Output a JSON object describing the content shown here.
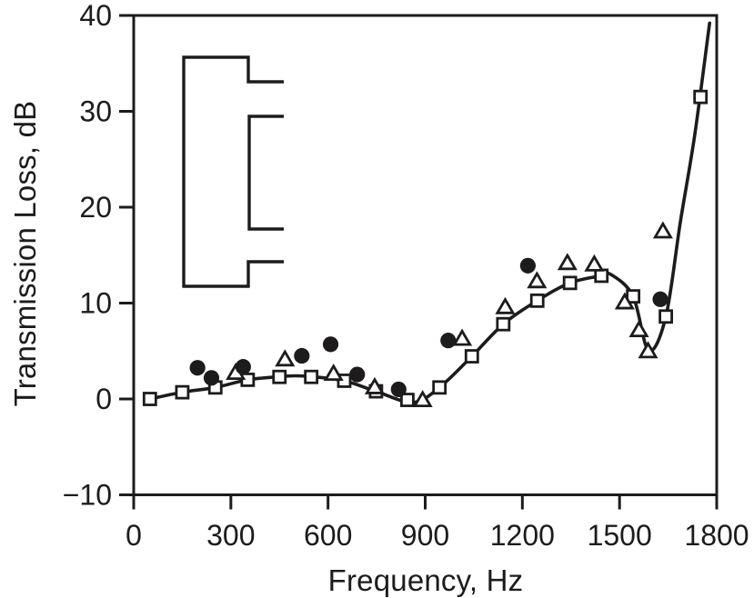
{
  "figure": {
    "background": "#ffffff",
    "ink_color": "#1d1b1b"
  },
  "chart_data": {
    "type": "line+scatter",
    "title": "",
    "xlabel": "Frequency, Hz",
    "ylabel": "Transmission Loss, dB",
    "xlim": [
      0,
      1800
    ],
    "ylim": [
      -10,
      40
    ],
    "xticks": [
      0,
      300,
      600,
      900,
      1200,
      1500,
      1800
    ],
    "xtick_labels": [
      "0",
      "300",
      "600",
      "900",
      "1200",
      "1500",
      "1800"
    ],
    "yticks": [
      40,
      30,
      20,
      10,
      0,
      -10
    ],
    "ytick_labels": [
      "40",
      "30",
      "20",
      "10",
      "0",
      "−10"
    ],
    "grid": false,
    "legend_position": "none",
    "series": [
      {
        "name": "prediction-line-open-squares",
        "marker": "open-square",
        "has_line": true,
        "points": [
          [
            50,
            0.0
          ],
          [
            150,
            0.7
          ],
          [
            252,
            1.2
          ],
          [
            352,
            2.0
          ],
          [
            450,
            2.3
          ],
          [
            548,
            2.3
          ],
          [
            650,
            1.9
          ],
          [
            748,
            0.8
          ],
          [
            845,
            -0.1
          ],
          [
            944,
            1.2
          ],
          [
            1044,
            4.45
          ],
          [
            1141,
            7.8
          ],
          [
            1246,
            10.25
          ],
          [
            1347,
            12.1
          ],
          [
            1444,
            12.85
          ],
          [
            1542,
            10.7
          ],
          [
            1643,
            8.6
          ],
          [
            1750,
            31.5
          ]
        ]
      },
      {
        "name": "measured-filled-circles",
        "marker": "filled-circle",
        "has_line": false,
        "points": [
          [
            197,
            3.25
          ],
          [
            240,
            2.2
          ],
          [
            338,
            3.35
          ],
          [
            519,
            4.5
          ],
          [
            608,
            5.7
          ],
          [
            690,
            2.55
          ],
          [
            818,
            1.0
          ],
          [
            971,
            6.1
          ],
          [
            1217,
            13.9
          ],
          [
            1626,
            10.4
          ]
        ]
      },
      {
        "name": "measured-open-triangles",
        "marker": "open-triangle",
        "has_line": false,
        "points": [
          [
            315,
            2.75
          ],
          [
            467,
            4.15
          ],
          [
            617,
            2.65
          ],
          [
            744,
            1.25
          ],
          [
            892,
            -0.1
          ],
          [
            1014,
            6.3
          ],
          [
            1147,
            9.6
          ],
          [
            1245,
            12.3
          ],
          [
            1339,
            14.2
          ],
          [
            1422,
            14.05
          ],
          [
            1516,
            10.1
          ],
          [
            1560,
            7.2
          ],
          [
            1588,
            5.0
          ],
          [
            1634,
            17.5
          ]
        ]
      }
    ],
    "curve_anchor_points": [
      [
        50,
        0.0
      ],
      [
        150,
        0.7
      ],
      [
        252,
        1.2
      ],
      [
        352,
        2.0
      ],
      [
        450,
        2.33
      ],
      [
        500,
        2.42
      ],
      [
        548,
        2.33
      ],
      [
        650,
        1.9
      ],
      [
        748,
        0.8
      ],
      [
        862,
        -0.35
      ],
      [
        944,
        1.2
      ],
      [
        1044,
        4.45
      ],
      [
        1141,
        7.8
      ],
      [
        1246,
        10.25
      ],
      [
        1347,
        12.1
      ],
      [
        1444,
        12.85
      ],
      [
        1475,
        12.95
      ],
      [
        1542,
        10.7
      ],
      [
        1590,
        5.05
      ],
      [
        1643,
        8.6
      ],
      [
        1688,
        18.5
      ],
      [
        1732,
        27.5
      ],
      [
        1778,
        39.2
      ]
    ],
    "annotations": [
      {
        "name": "muffler-cross-section-inset",
        "text": ""
      }
    ]
  }
}
